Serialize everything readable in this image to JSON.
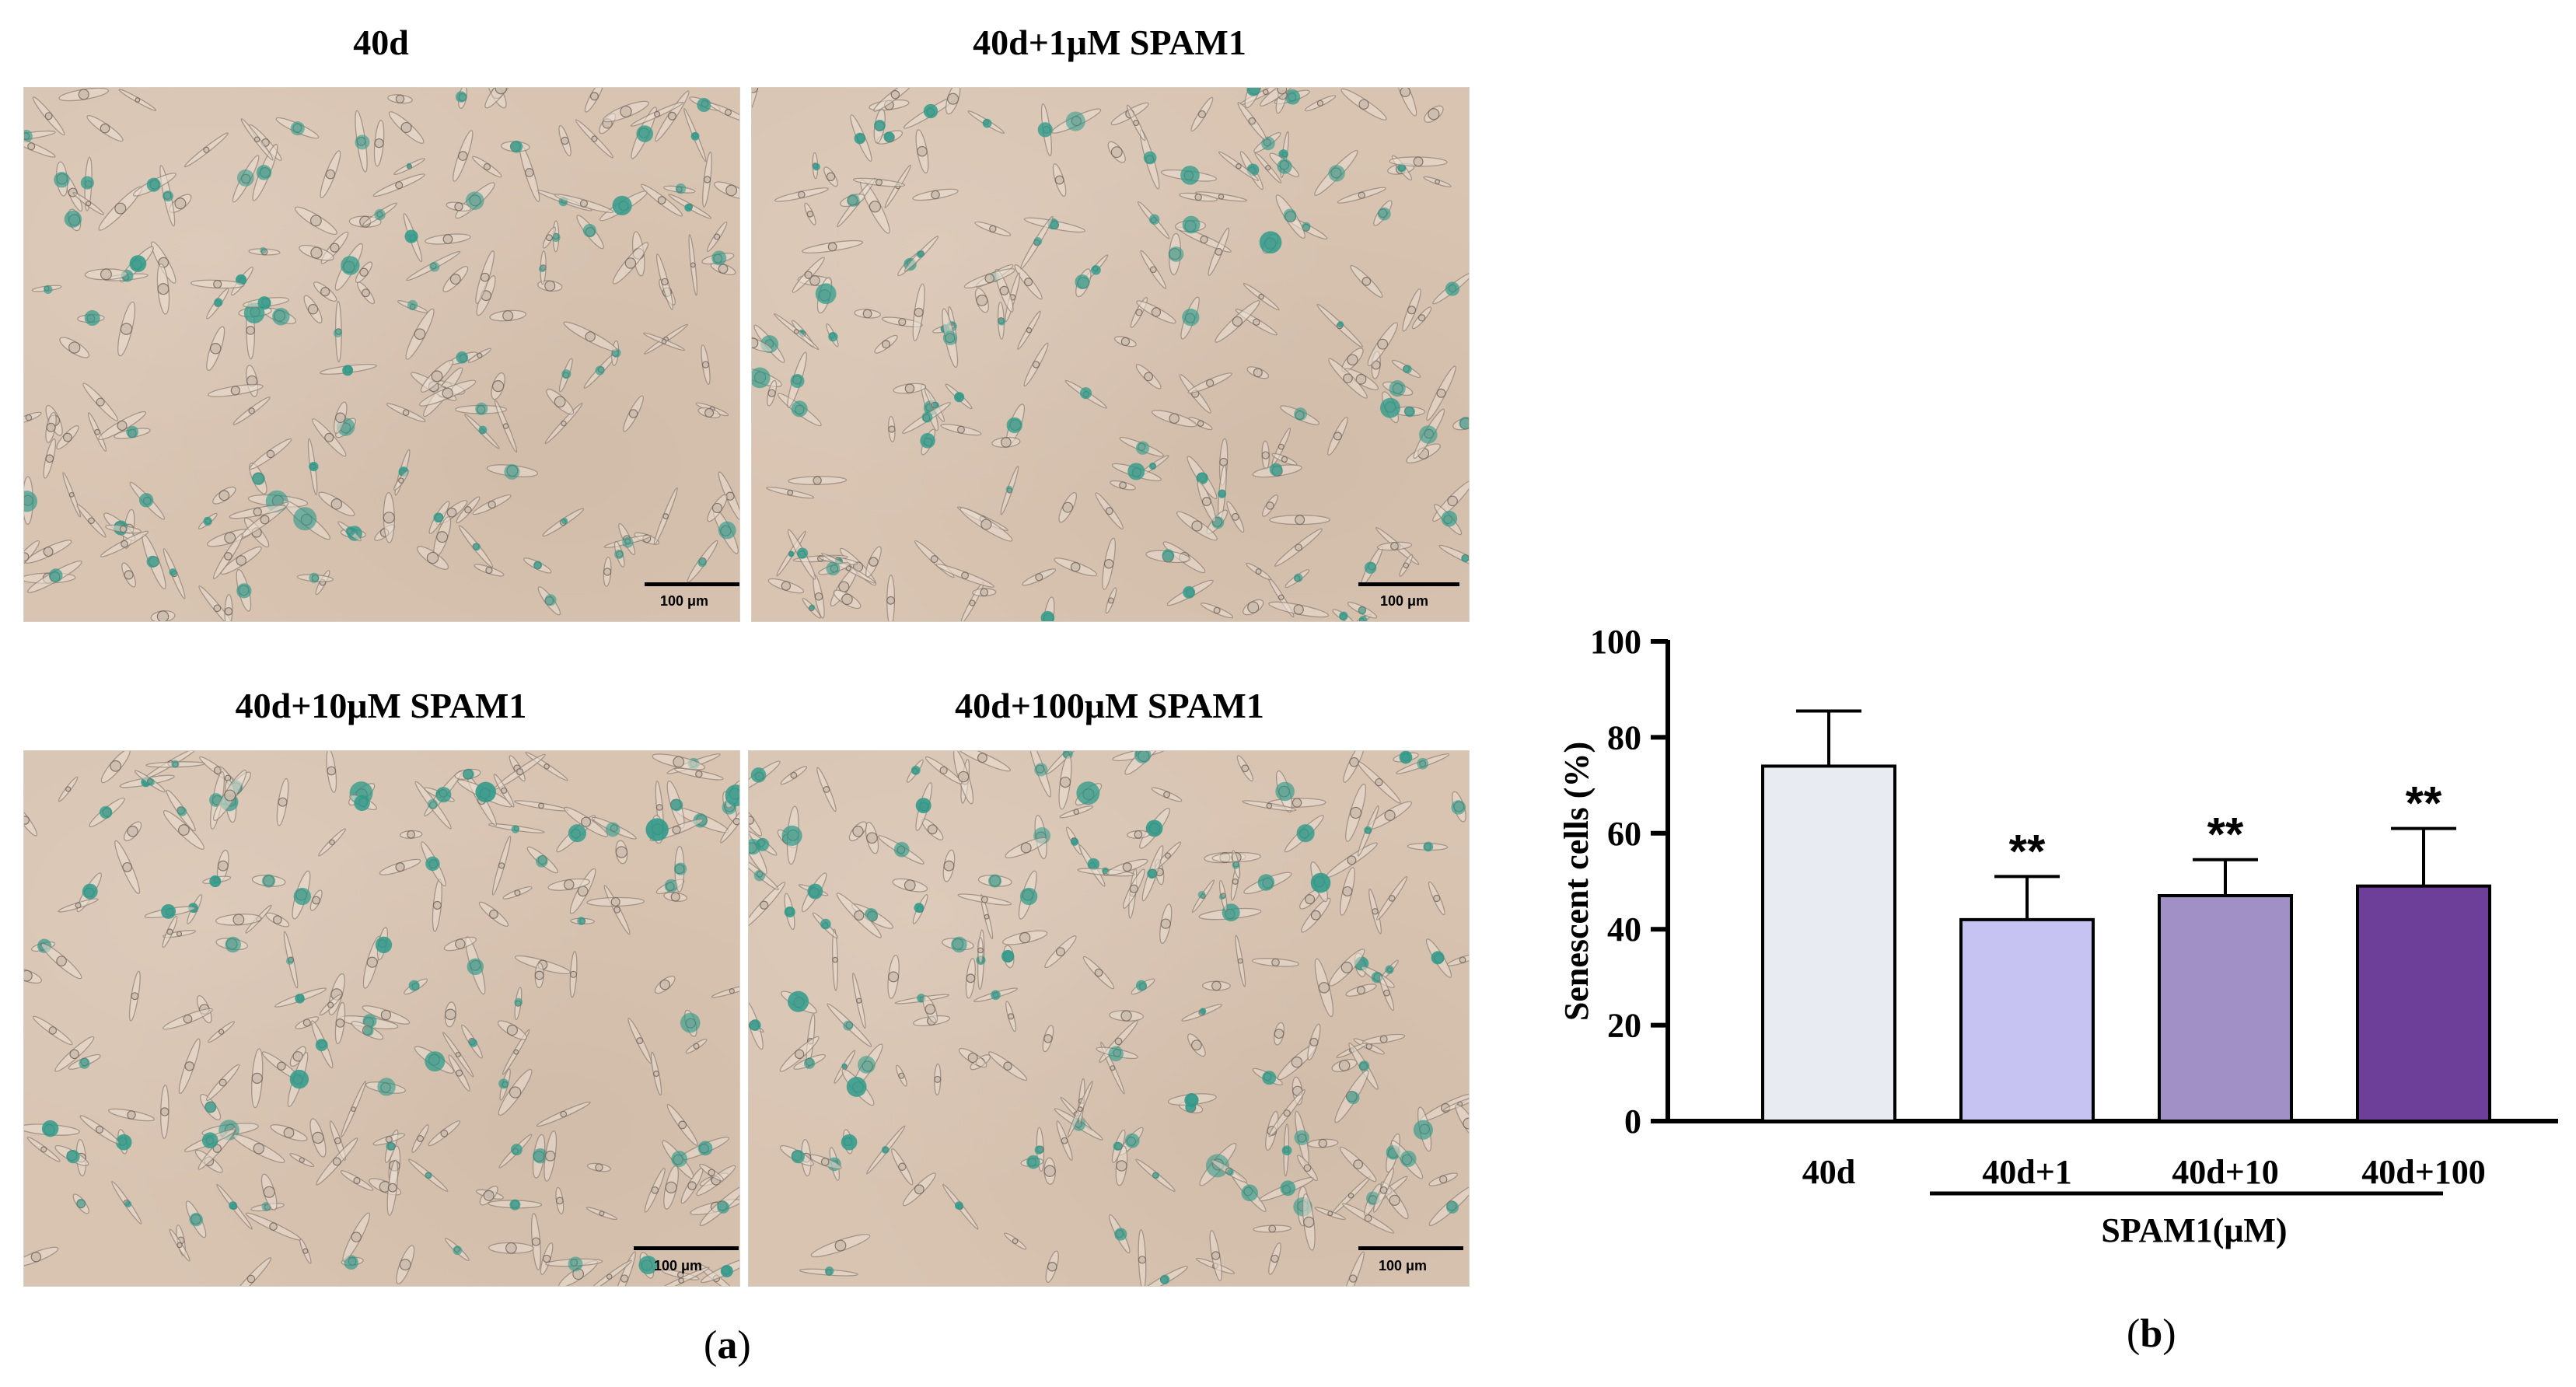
{
  "panel_a": {
    "label_open": "(",
    "label_letter": "a",
    "label_close": ")",
    "images": [
      {
        "title": "40d",
        "scale_label": "100 μm"
      },
      {
        "title": "40d+1μM SPAM1",
        "scale_label": "100 μm"
      },
      {
        "title": "40d+10μM SPAM1",
        "scale_label": "100 μm"
      },
      {
        "title": "40d+100μM SPAM1",
        "scale_label": "100 μm"
      }
    ],
    "colors": {
      "background": "#d9c4b2",
      "stain": "#2e9a8a",
      "cell_outline": "#8a7d72"
    }
  },
  "panel_b": {
    "label_open": "(",
    "label_letter": "b",
    "label_close": ")"
  },
  "chart_data": {
    "type": "bar",
    "categories": [
      "40d",
      "40d+1",
      "40d+10",
      "40d+100"
    ],
    "values": [
      74,
      42,
      47,
      49
    ],
    "error_upper": [
      85.5,
      51,
      54.5,
      61
    ],
    "significance": [
      "",
      "**",
      "**",
      "**"
    ],
    "colors": [
      "#e8ebf1",
      "#c6c3f3",
      "#a090c6",
      "#6e3f99"
    ],
    "ylabel": "Senescent cells (%)",
    "ylim": [
      0,
      100
    ],
    "yticks": [
      0,
      20,
      40,
      60,
      80,
      100
    ],
    "group_label": "SPAM1(μM)",
    "grid": false
  }
}
